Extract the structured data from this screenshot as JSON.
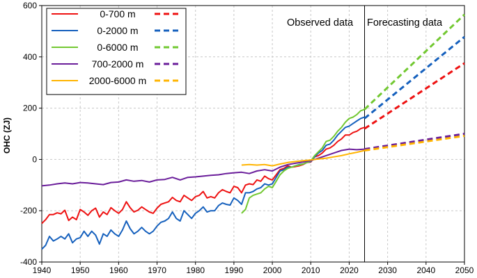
{
  "chart_data": {
    "type": "line",
    "title": "",
    "xlabel": "",
    "ylabel": "OHC (ZJ)",
    "xlim": [
      1940,
      2050
    ],
    "ylim": [
      -400,
      600
    ],
    "xticks": [
      1940,
      1950,
      1960,
      1970,
      1980,
      1990,
      2000,
      2010,
      2020,
      2030,
      2040,
      2050
    ],
    "yticks": [
      -400,
      -200,
      0,
      200,
      400,
      600
    ],
    "grid": true,
    "legend_position": "top-left",
    "divider_year": 2024,
    "annotations": {
      "observed": "Observed data",
      "forecast": "Forecasting data"
    },
    "series": [
      {
        "name": "0-700 m",
        "color": "#ee1111",
        "observed_x": [
          1940,
          1941,
          1942,
          1943,
          1944,
          1945,
          1946,
          1947,
          1948,
          1949,
          1950,
          1951,
          1952,
          1953,
          1954,
          1955,
          1956,
          1957,
          1958,
          1959,
          1960,
          1961,
          1962,
          1963,
          1964,
          1965,
          1966,
          1967,
          1968,
          1969,
          1970,
          1971,
          1972,
          1973,
          1974,
          1975,
          1976,
          1977,
          1978,
          1979,
          1980,
          1981,
          1982,
          1983,
          1984,
          1985,
          1986,
          1987,
          1988,
          1989,
          1990,
          1991,
          1992,
          1993,
          1994,
          1995,
          1996,
          1997,
          1998,
          1999,
          2000,
          2001,
          2002,
          2003,
          2004,
          2005,
          2006,
          2007,
          2008,
          2009,
          2010,
          2011,
          2012,
          2013,
          2014,
          2015,
          2016,
          2017,
          2018,
          2019,
          2020,
          2021,
          2022,
          2023,
          2024
        ],
        "observed_y": [
          -250,
          -235,
          -215,
          -215,
          -208,
          -212,
          -198,
          -238,
          -225,
          -235,
          -195,
          -205,
          -218,
          -200,
          -190,
          -225,
          -205,
          -215,
          -188,
          -200,
          -210,
          -195,
          -165,
          -188,
          -205,
          -198,
          -185,
          -195,
          -205,
          -210,
          -190,
          -175,
          -170,
          -165,
          -148,
          -160,
          -165,
          -140,
          -150,
          -160,
          -145,
          -140,
          -125,
          -150,
          -145,
          -150,
          -130,
          -118,
          -125,
          -130,
          -105,
          -110,
          -130,
          -100,
          -95,
          -98,
          -80,
          -85,
          -65,
          -75,
          -80,
          -60,
          -40,
          -35,
          -25,
          -30,
          -28,
          -25,
          -20,
          -12,
          -10,
          10,
          15,
          25,
          40,
          45,
          55,
          70,
          80,
          95,
          95,
          105,
          110,
          120,
          125
        ],
        "forecast_x": [
          2024,
          2050
        ],
        "forecast_y": [
          120,
          375
        ]
      },
      {
        "name": "0-2000 m",
        "color": "#1560bd",
        "observed_x": [
          1940,
          1941,
          1942,
          1943,
          1944,
          1945,
          1946,
          1947,
          1948,
          1949,
          1950,
          1951,
          1952,
          1953,
          1954,
          1955,
          1956,
          1957,
          1958,
          1959,
          1960,
          1961,
          1962,
          1963,
          1964,
          1965,
          1966,
          1967,
          1968,
          1969,
          1970,
          1971,
          1972,
          1973,
          1974,
          1975,
          1976,
          1977,
          1978,
          1979,
          1980,
          1981,
          1982,
          1983,
          1984,
          1985,
          1986,
          1987,
          1988,
          1989,
          1990,
          1991,
          1992,
          1993,
          1994,
          1995,
          1996,
          1997,
          1998,
          1999,
          2000,
          2001,
          2002,
          2003,
          2004,
          2005,
          2006,
          2007,
          2008,
          2009,
          2010,
          2011,
          2012,
          2013,
          2014,
          2015,
          2016,
          2017,
          2018,
          2019,
          2020,
          2021,
          2022,
          2023,
          2024
        ],
        "observed_y": [
          -350,
          -335,
          -300,
          -318,
          -310,
          -300,
          -310,
          -290,
          -325,
          -310,
          -305,
          -280,
          -300,
          -280,
          -295,
          -330,
          -290,
          -300,
          -275,
          -290,
          -300,
          -275,
          -240,
          -270,
          -290,
          -280,
          -265,
          -280,
          -290,
          -280,
          -260,
          -245,
          -240,
          -230,
          -205,
          -230,
          -240,
          -200,
          -215,
          -230,
          -210,
          -200,
          -185,
          -205,
          -200,
          -200,
          -180,
          -170,
          -175,
          -178,
          -150,
          -160,
          -175,
          -130,
          -130,
          -125,
          -115,
          -110,
          -95,
          -100,
          -95,
          -70,
          -45,
          -40,
          -30,
          -30,
          -25,
          -20,
          -18,
          -12,
          -8,
          10,
          25,
          35,
          55,
          60,
          75,
          95,
          110,
          125,
          130,
          140,
          150,
          160,
          165
        ],
        "forecast_x": [
          2024,
          2050
        ],
        "forecast_y": [
          160,
          478
        ]
      },
      {
        "name": "0-6000 m",
        "color": "#72c831",
        "observed_x": [
          1992,
          1993,
          1994,
          1995,
          1996,
          1997,
          1998,
          1999,
          2000,
          2001,
          2002,
          2003,
          2004,
          2005,
          2006,
          2007,
          2008,
          2009,
          2010,
          2011,
          2012,
          2013,
          2014,
          2015,
          2016,
          2017,
          2018,
          2019,
          2020,
          2021,
          2022,
          2023,
          2024
        ],
        "observed_y": [
          -210,
          -195,
          -150,
          -140,
          -135,
          -130,
          -115,
          -105,
          -110,
          -85,
          -60,
          -45,
          -35,
          -30,
          -25,
          -22,
          -18,
          -12,
          -6,
          15,
          30,
          45,
          70,
          75,
          90,
          110,
          125,
          145,
          160,
          165,
          175,
          190,
          195
        ],
        "forecast_x": [
          2024,
          2050
        ],
        "forecast_y": [
          195,
          565
        ]
      },
      {
        "name": "700-2000 m",
        "color": "#6a1d9a",
        "observed_x": [
          1940,
          1942,
          1944,
          1946,
          1948,
          1950,
          1952,
          1954,
          1956,
          1958,
          1960,
          1962,
          1964,
          1966,
          1968,
          1970,
          1972,
          1974,
          1976,
          1978,
          1980,
          1982,
          1984,
          1986,
          1988,
          1990,
          1992,
          1994,
          1996,
          1998,
          2000,
          2002,
          2004,
          2006,
          2008,
          2010,
          2012,
          2014,
          2016,
          2018,
          2020,
          2022,
          2024
        ],
        "observed_y": [
          -103,
          -100,
          -95,
          -92,
          -95,
          -90,
          -92,
          -95,
          -98,
          -90,
          -88,
          -80,
          -85,
          -82,
          -88,
          -80,
          -78,
          -70,
          -80,
          -70,
          -68,
          -65,
          -62,
          -60,
          -55,
          -52,
          -50,
          -55,
          -45,
          -40,
          -45,
          -30,
          -20,
          -15,
          -10,
          -5,
          5,
          15,
          25,
          35,
          40,
          38,
          40
        ],
        "forecast_x": [
          2024,
          2050
        ],
        "forecast_y": [
          40,
          100
        ]
      },
      {
        "name": "2000-6000 m",
        "color": "#ffb400",
        "observed_x": [
          1992,
          1994,
          1996,
          1998,
          2000,
          2002,
          2004,
          2006,
          2008,
          2010,
          2012,
          2014,
          2016,
          2018,
          2020,
          2022,
          2024
        ],
        "observed_y": [
          -22,
          -20,
          -22,
          -20,
          -25,
          -18,
          -12,
          -8,
          -5,
          -2,
          2,
          5,
          10,
          15,
          22,
          28,
          35
        ],
        "forecast_x": [
          2024,
          2050
        ],
        "forecast_y": [
          35,
          92
        ]
      }
    ]
  }
}
